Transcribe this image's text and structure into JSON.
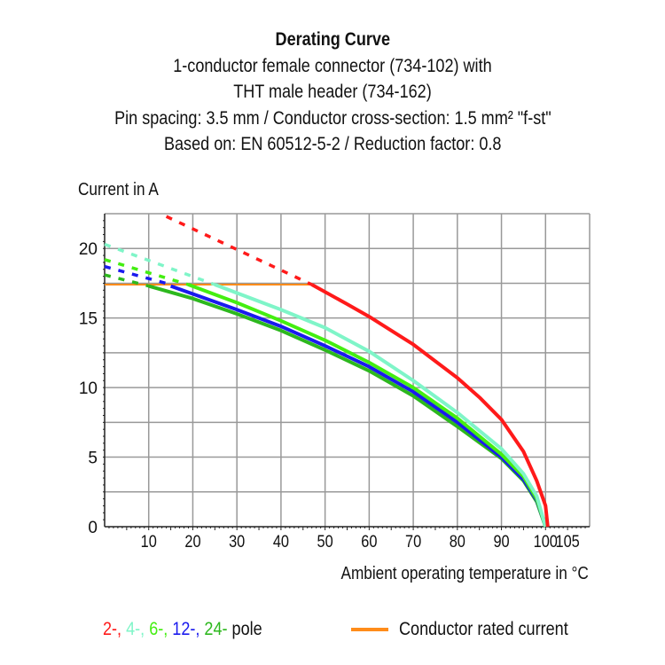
{
  "chart_data": {
    "type": "line",
    "title": "Derating Curve",
    "subtitle_lines": [
      "1-conductor female connector (734-102) with",
      "THT male header (734-162)",
      "Pin spacing: 3.5 mm / Conductor cross-section: 1.5 mm² \"f-st\"",
      "Based on: EN 60512-5-2 / Reduction factor: 0.8"
    ],
    "xlabel": "Ambient operating temperature in °C",
    "ylabel": "Current in A",
    "xlim": [
      0,
      110
    ],
    "ylim": [
      0,
      22.5
    ],
    "x_ticks": [
      10,
      20,
      30,
      40,
      50,
      60,
      70,
      80,
      90,
      100,
      105
    ],
    "y_ticks": [
      0,
      5,
      10,
      15,
      20
    ],
    "grid": true,
    "legend_suffix": "pole",
    "series": [
      {
        "name": "2-",
        "color": "#ff1a1a",
        "dashed": [
          [
            14,
            22.3
          ],
          [
            47,
            17.4
          ]
        ],
        "solid": [
          [
            47,
            17.4
          ],
          [
            55,
            16.0
          ],
          [
            60,
            15.1
          ],
          [
            70,
            13.1
          ],
          [
            80,
            10.7
          ],
          [
            85,
            9.3
          ],
          [
            90,
            7.7
          ],
          [
            95,
            5.4
          ],
          [
            98,
            3.3
          ],
          [
            100,
            1.5
          ],
          [
            100.5,
            0
          ]
        ]
      },
      {
        "name": "4-",
        "color": "#7ff5c8",
        "dashed": [
          [
            0,
            20.3
          ],
          [
            25,
            17.4
          ]
        ],
        "solid": [
          [
            25,
            17.4
          ],
          [
            40,
            15.6
          ],
          [
            50,
            14.3
          ],
          [
            60,
            12.6
          ],
          [
            70,
            10.5
          ],
          [
            80,
            8.2
          ],
          [
            90,
            5.6
          ],
          [
            95,
            3.8
          ],
          [
            98,
            2.2
          ],
          [
            100,
            0
          ]
        ]
      },
      {
        "name": "6-",
        "color": "#44ee11",
        "dashed": [
          [
            0,
            19.2
          ],
          [
            19,
            17.4
          ]
        ],
        "solid": [
          [
            19,
            17.4
          ],
          [
            30,
            16.1
          ],
          [
            40,
            14.8
          ],
          [
            50,
            13.4
          ],
          [
            60,
            11.8
          ],
          [
            70,
            10.0
          ],
          [
            80,
            7.8
          ],
          [
            90,
            5.2
          ],
          [
            95,
            3.6
          ],
          [
            98,
            2.0
          ],
          [
            100,
            0
          ]
        ]
      },
      {
        "name": "12-",
        "color": "#1a1aee",
        "dashed": [
          [
            0,
            18.7
          ],
          [
            15,
            17.4
          ]
        ],
        "solid": [
          [
            15,
            17.3
          ],
          [
            30,
            15.6
          ],
          [
            40,
            14.4
          ],
          [
            50,
            13.0
          ],
          [
            60,
            11.5
          ],
          [
            70,
            9.7
          ],
          [
            80,
            7.5
          ],
          [
            90,
            5.0
          ],
          [
            95,
            3.4
          ],
          [
            98,
            1.9
          ],
          [
            100,
            0
          ]
        ]
      },
      {
        "name": "24-",
        "color": "#2db81e",
        "dashed": [
          [
            0,
            18.1
          ],
          [
            10,
            17.3
          ]
        ],
        "solid": [
          [
            10,
            17.3
          ],
          [
            20,
            16.4
          ],
          [
            30,
            15.3
          ],
          [
            40,
            14.1
          ],
          [
            50,
            12.7
          ],
          [
            60,
            11.2
          ],
          [
            70,
            9.4
          ],
          [
            80,
            7.2
          ],
          [
            90,
            4.9
          ],
          [
            95,
            3.3
          ],
          [
            98,
            1.8
          ],
          [
            100,
            0
          ]
        ]
      }
    ],
    "rated_current": {
      "name": "Conductor rated current",
      "color": "#ff8c1a",
      "points": [
        [
          0,
          17.4
        ],
        [
          47,
          17.4
        ]
      ]
    }
  }
}
